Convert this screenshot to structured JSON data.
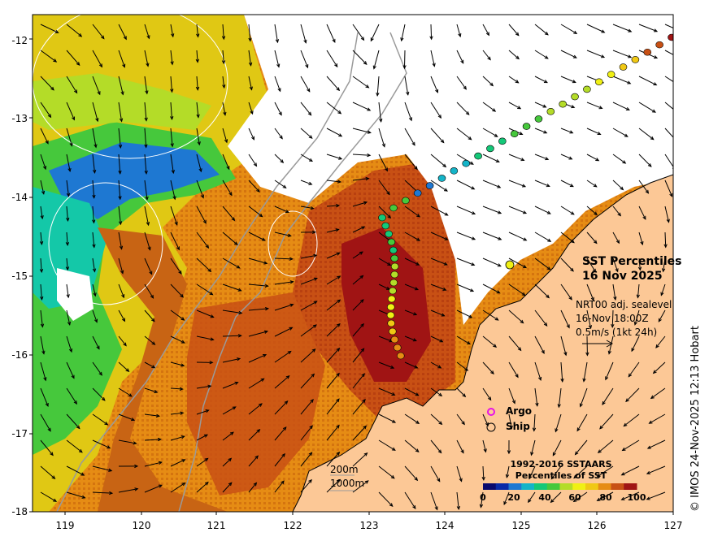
{
  "title": {
    "line1": "SST Percentiles",
    "line2": "16 Nov 2025"
  },
  "vectors": {
    "line1": "NRT00 adj. sealevel",
    "line2": "16-Nov 18:00Z",
    "line3": "0.5m/s (1kt 24h)"
  },
  "legend": {
    "argo": "Argo",
    "ship": "Ship"
  },
  "isobaths": {
    "a": "200m",
    "b": "1000m"
  },
  "colorbar": {
    "title1": "1992-2016 SSTAARS",
    "title2": "Percentiles of SST",
    "ticks": [
      "0",
      "20",
      "40",
      "60",
      "80",
      "100"
    ],
    "colors": [
      "#0a0a6e",
      "#0a2aa8",
      "#1e78d2",
      "#14b4c8",
      "#14c878",
      "#46c83c",
      "#b4dc28",
      "#f0f014",
      "#f0c814",
      "#e68c14",
      "#c85014",
      "#a01414"
    ]
  },
  "yaxis": [
    "-12",
    "-13",
    "-14",
    "-15",
    "-16",
    "-17",
    "-18"
  ],
  "xaxis": [
    "119",
    "120",
    "121",
    "122",
    "123",
    "124",
    "125",
    "126",
    "127"
  ],
  "copyright": "© IMOS 24-Nov-2025 12:13 Hobart",
  "ship_track_percentiles": [
    95,
    90,
    85,
    72,
    70,
    62,
    62,
    58,
    55,
    52,
    50,
    48,
    45,
    42,
    40,
    38,
    35,
    30,
    28,
    25,
    20,
    22,
    45,
    42,
    40,
    38,
    35,
    45,
    40,
    48,
    50,
    52,
    55,
    58,
    60,
    62,
    65,
    68,
    70,
    75,
    78,
    80
  ]
}
